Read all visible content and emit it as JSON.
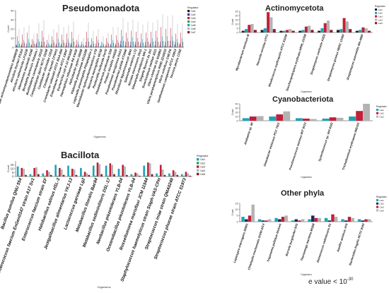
{
  "colors": {
    "black": "#222222",
    "blue": "#2c3e9e",
    "red": "#c0203a",
    "green": "#2aa84a",
    "teal": "#1fa2b8",
    "gray": "#b3b3b3",
    "crimson": "#8b1a2e",
    "navy": "#1a2a5e"
  },
  "legend_title": "Regulator",
  "legend_entries": [
    "Cat1",
    "Cat2",
    "Cat3",
    "Cat4",
    "Cat5",
    "Cat6",
    "Cat7"
  ],
  "footnote": {
    "text": "e value < 10",
    "exponent": "-30"
  },
  "chart_data": [
    {
      "type": "bar",
      "title": "Pseudomonadota",
      "xlabel": "Organisms",
      "ylabel": "Count",
      "ylim": [
        0,
        40
      ],
      "yticks": [
        0,
        10,
        20,
        30,
        40
      ],
      "categories": [
        "Aggregatibacter actinomycetemcomitans NUM4039",
        "Aliivibrio fischeri ES114",
        "Aliivibrio salmonicida LFI1238",
        "Alteromonas macleodii AD45",
        "Bordetella pertussis Tohama I",
        "Burkholderia cenocepacia J2315",
        "Campylobacter jejuni NCTC 11168",
        "Caulobacter vibrioides CB15",
        "Citrobacter freundii CFNIH1",
        "Cronobacter sakazakii ATCC BAA-894",
        "Enterobacter cloacae ATCC 13047",
        "Escherichia coli K-12 MG1655",
        "Haemophilus influenzae Rd KW20",
        "Helicobacter pylori 26695",
        "Klebsiella pneumoniae HS11286",
        "Legionella pneumophila Philadelphia 1",
        "Marinobacter hydrocarbonoclasticus VT8",
        "Neisseria meningitidis MC58",
        "Pasteurella multocida Pm70",
        "Photobacterium profundum SS9",
        "Proteus mirabilis HI4320",
        "Pseudomonas aeruginosa PAO1",
        "Pseudomonas putida KT2440",
        "Rhizobium leguminosarum 3841",
        "Salmonella enterica LT2",
        "Serratia marcescens Db11",
        "Shewanella oneidensis MR-1",
        "Shigella flexneri 2a 301",
        "Sinorhizobium meliloti 1021",
        "Vibrio cholerae O1 N16961",
        "Vibrio parahaemolyticus RIMD 2210633",
        "Vibrio vulnificus CMCP6",
        "Xanthomonas campestris ATCC 33913",
        "Yersinia pestis CO92"
      ],
      "series": [
        {
          "color": "black",
          "values": [
            2,
            2,
            1,
            2,
            3,
            2,
            1,
            2,
            2,
            2,
            2,
            3,
            1,
            1,
            2,
            2,
            1,
            1,
            1,
            2,
            2,
            3,
            2,
            2,
            3,
            2,
            2,
            3,
            2,
            2,
            2,
            2,
            3,
            3
          ]
        },
        {
          "color": "blue",
          "values": [
            3,
            4,
            4,
            3,
            5,
            6,
            3,
            4,
            4,
            4,
            5,
            5,
            3,
            3,
            6,
            3,
            4,
            2,
            3,
            4,
            4,
            7,
            6,
            6,
            6,
            5,
            6,
            5,
            7,
            6,
            6,
            7,
            6,
            5
          ]
        },
        {
          "color": "red",
          "values": [
            12,
            14,
            16,
            9,
            15,
            18,
            8,
            12,
            16,
            14,
            15,
            17,
            8,
            6,
            17,
            10,
            12,
            6,
            10,
            14,
            13,
            19,
            16,
            18,
            17,
            15,
            16,
            17,
            18,
            22,
            20,
            21,
            15,
            16
          ]
        },
        {
          "color": "green",
          "values": [
            1,
            1,
            1,
            1,
            1,
            2,
            1,
            1,
            1,
            1,
            1,
            1,
            1,
            0,
            1,
            1,
            1,
            1,
            1,
            1,
            1,
            2,
            1,
            1,
            1,
            1,
            1,
            1,
            1,
            1,
            1,
            1,
            1,
            1
          ]
        },
        {
          "color": "teal",
          "values": [
            7,
            8,
            9,
            7,
            9,
            11,
            5,
            8,
            9,
            8,
            9,
            10,
            6,
            4,
            10,
            7,
            8,
            5,
            6,
            8,
            8,
            12,
            10,
            11,
            10,
            9,
            10,
            10,
            11,
            12,
            12,
            12,
            9,
            10
          ]
        },
        {
          "color": "gray",
          "values": [
            20,
            22,
            24,
            15,
            26,
            30,
            14,
            20,
            25,
            22,
            24,
            28,
            14,
            10,
            27,
            18,
            20,
            12,
            16,
            22,
            22,
            32,
            28,
            30,
            28,
            25,
            28,
            27,
            30,
            36,
            34,
            35,
            25,
            26
          ]
        },
        {
          "color": "crimson",
          "values": [
            4,
            5,
            5,
            4,
            6,
            6,
            3,
            5,
            5,
            5,
            5,
            6,
            3,
            2,
            6,
            4,
            5,
            3,
            4,
            5,
            5,
            7,
            6,
            6,
            6,
            5,
            6,
            6,
            6,
            7,
            7,
            7,
            5,
            6
          ]
        }
      ]
    },
    {
      "type": "bar",
      "title": "Actinomycetota",
      "xlabel": "Organisms",
      "ylabel": "Count",
      "ylim": [
        0,
        25
      ],
      "yticks": [
        0,
        5,
        10,
        15,
        20,
        25
      ],
      "categories": [
        "Mycobacterium marinum M",
        "Nocardia seriolae UTF1",
        "Rhodococcus erythropolis ATCC 53206",
        "Saccharopolyspora erythraea NRRL 23338",
        "Streptomyces coelicolor A3(2)",
        "Streptomyces griseus NBRC 13350",
        "Streptomyces avermitilis MA-4680"
      ],
      "series": [
        {
          "color": "black",
          "values": [
            2,
            3,
            2,
            2,
            2,
            3,
            2
          ]
        },
        {
          "color": "teal",
          "values": [
            4,
            5,
            2,
            3,
            5,
            4,
            3
          ]
        },
        {
          "color": "red",
          "values": [
            9,
            24,
            3,
            7,
            11,
            17,
            6
          ]
        },
        {
          "color": "gray",
          "values": [
            10,
            18,
            4,
            8,
            14,
            13,
            5
          ]
        },
        {
          "color": "crimson",
          "values": [
            3,
            4,
            2,
            3,
            3,
            4,
            2
          ]
        }
      ]
    },
    {
      "type": "bar",
      "title": "Cyanobacteriota",
      "xlabel": "Organisms",
      "ylabel": "Count",
      "ylim": [
        0,
        40
      ],
      "yticks": [
        0,
        10,
        20,
        30,
        40
      ],
      "categories": [
        "Anabaena sp. 90",
        "Gloeobacter violaceus PCC 7421",
        "Prochlorococcus marinus MIT 9313",
        "Synechococcus sp. WH 8102",
        "Trichodesmium erythraeum IMS101"
      ],
      "series": [
        {
          "color": "teal",
          "values": [
            6,
            10,
            6,
            5,
            10
          ]
        },
        {
          "color": "red",
          "values": [
            10,
            15,
            5,
            8,
            23
          ]
        },
        {
          "color": "gray",
          "values": [
            11,
            22,
            4,
            7,
            40
          ]
        }
      ]
    },
    {
      "type": "bar",
      "title": "Other phyla",
      "xlabel": "Organisms",
      "ylabel": "Count",
      "ylim": [
        0,
        15
      ],
      "yticks": [
        0,
        5,
        10,
        15
      ],
      "categories": [
        "Leptospira interrogans 56601",
        "Chlamydia trachomatis D/UW-3/CX",
        "Treponema pallidum Nichols",
        "Borrelia burgdorferi B31",
        "Thermotoga maritima MSB8",
        "Deinococcus radiodurans R1",
        "Aquifex aeolicus VF5",
        "Bacteroides fragilis NCTC 9343"
      ],
      "series": [
        {
          "color": "teal",
          "values": [
            4,
            2,
            3,
            1,
            2,
            3,
            2,
            2
          ]
        },
        {
          "color": "navy",
          "values": [
            2,
            1,
            2,
            2,
            5,
            1,
            1,
            1
          ]
        },
        {
          "color": "red",
          "values": [
            5,
            1,
            4,
            1,
            3,
            6,
            4,
            2
          ]
        },
        {
          "color": "gray",
          "values": [
            14,
            2,
            5,
            2,
            3,
            4,
            3,
            2
          ]
        }
      ]
    },
    {
      "type": "bar",
      "title": "Bacillota",
      "xlabel": "Organisms",
      "ylabel": "Count",
      "ylim": [
        0,
        20
      ],
      "yticks": [
        0,
        5,
        10,
        15
      ],
      "categories": [
        "Bacillus pumilus QNU 554",
        "Enterococcus faecium EnGen0147 strain A17 Sv1",
        "Enterococcus faecium strain EF",
        "Halobacillus salinus HSL-3",
        "Jeotgalibacillus alimentarius YKJ-13",
        "Lactococcus garvieae Lg2",
        "Metabacillus litoralis Bac84",
        "Metabacillus sediminilitoris DSL-17",
        "Neobacillus piezotolerans YLB-04",
        "Oceanobacillus piezotolerans YLB-04",
        "Rossellomorea marisflavi JCM 11544",
        "Staphylococcus haemolyticus strain Staph-VAS-CPH",
        "Streptococcus iniae strain QMA0248",
        "Streptococcus phocae strain ATCC 51973"
      ],
      "series": [
        {
          "color": "teal",
          "values": [
            13,
            3,
            4,
            15,
            14,
            11,
            14,
            14,
            10,
            3,
            14,
            4,
            4,
            3
          ]
        },
        {
          "color": "green",
          "values": [
            1,
            1,
            1,
            1,
            1,
            1,
            1,
            1,
            1,
            1,
            1,
            1,
            1,
            1
          ]
        },
        {
          "color": "red",
          "values": [
            11,
            11,
            8,
            11,
            10,
            6,
            18,
            17,
            15,
            5,
            18,
            15,
            8,
            6
          ]
        },
        {
          "color": "gray",
          "values": [
            10,
            12,
            6,
            9,
            9,
            4,
            16,
            15,
            13,
            4,
            17,
            9,
            6,
            4
          ]
        },
        {
          "color": "crimson",
          "values": [
            2,
            3,
            2,
            2,
            2,
            2,
            3,
            3,
            2,
            1,
            3,
            2,
            2,
            1
          ]
        }
      ]
    }
  ]
}
